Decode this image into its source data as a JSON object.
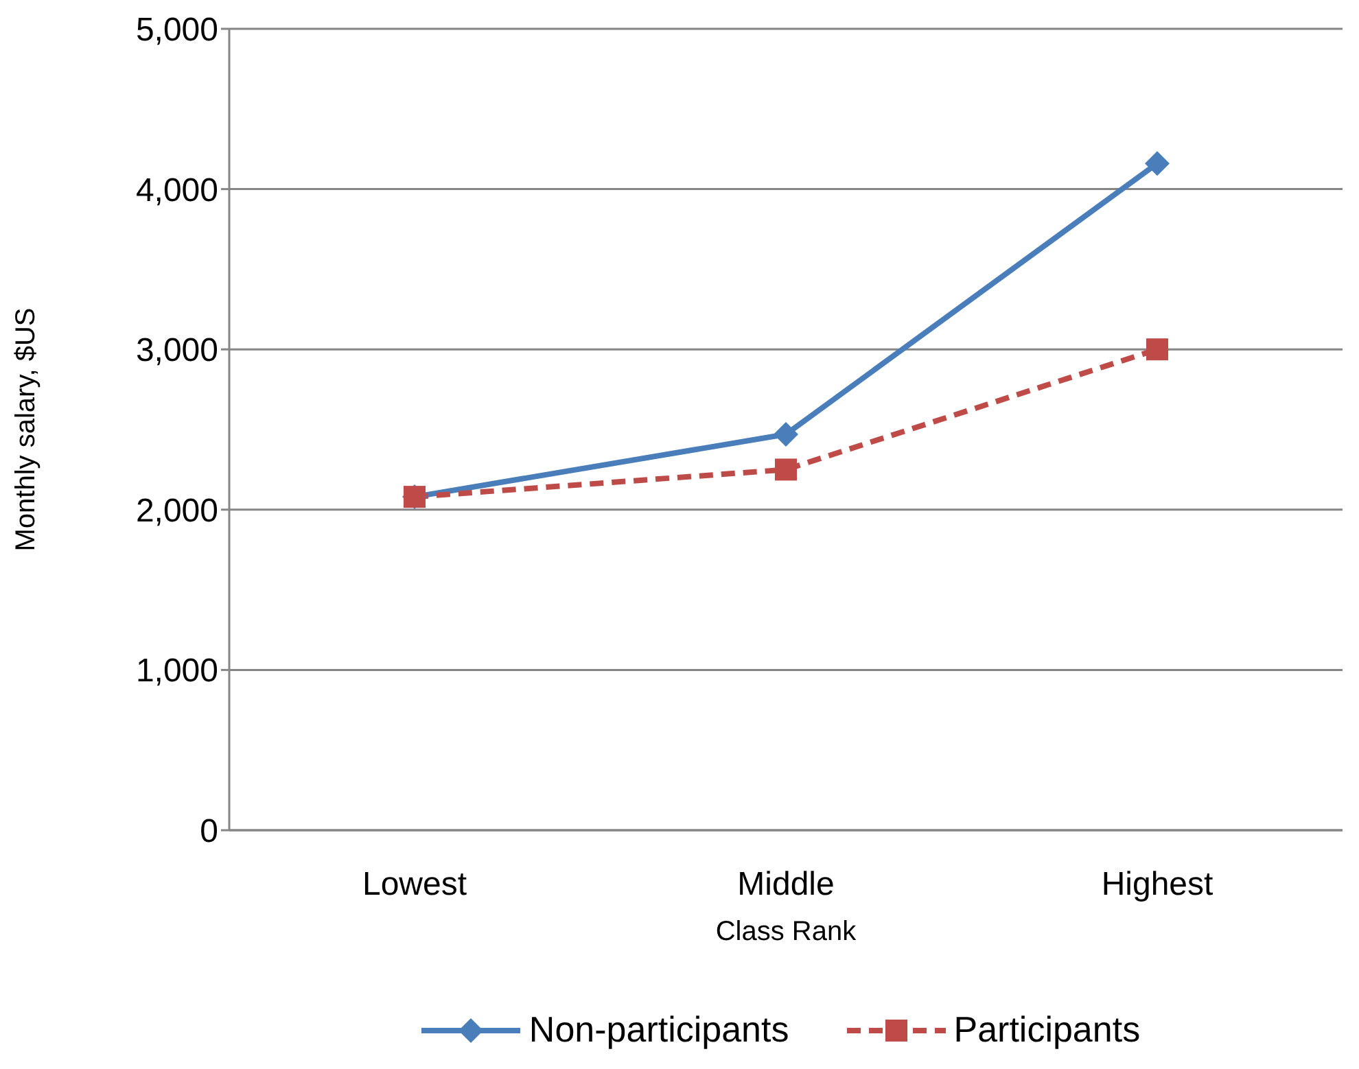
{
  "chart_data": {
    "type": "line",
    "xlabel": "Class Rank",
    "ylabel": "Monthly salary, $US",
    "categories": [
      "Lowest",
      "Middle",
      "Highest"
    ],
    "series": [
      {
        "name": "Non-participants",
        "color": "#4a7ebb",
        "values": [
          2080,
          2470,
          4160
        ],
        "marker": "diamond",
        "line_style": "solid"
      },
      {
        "name": "Participants",
        "color": "#be4b48",
        "values": [
          2080,
          2250,
          3000
        ],
        "marker": "square",
        "line_style": "dashed"
      }
    ],
    "ylim": [
      0,
      5000
    ],
    "yticks": [
      0,
      {
        "value": 1000,
        "label": "1,000"
      },
      {
        "value": 2000,
        "label": "2,000"
      },
      {
        "value": 3000,
        "label": "3,000"
      },
      {
        "value": 4000,
        "label": "4,000"
      },
      {
        "value": 5000,
        "label": "5,000"
      }
    ],
    "grid": "y",
    "legend": "bottom"
  }
}
